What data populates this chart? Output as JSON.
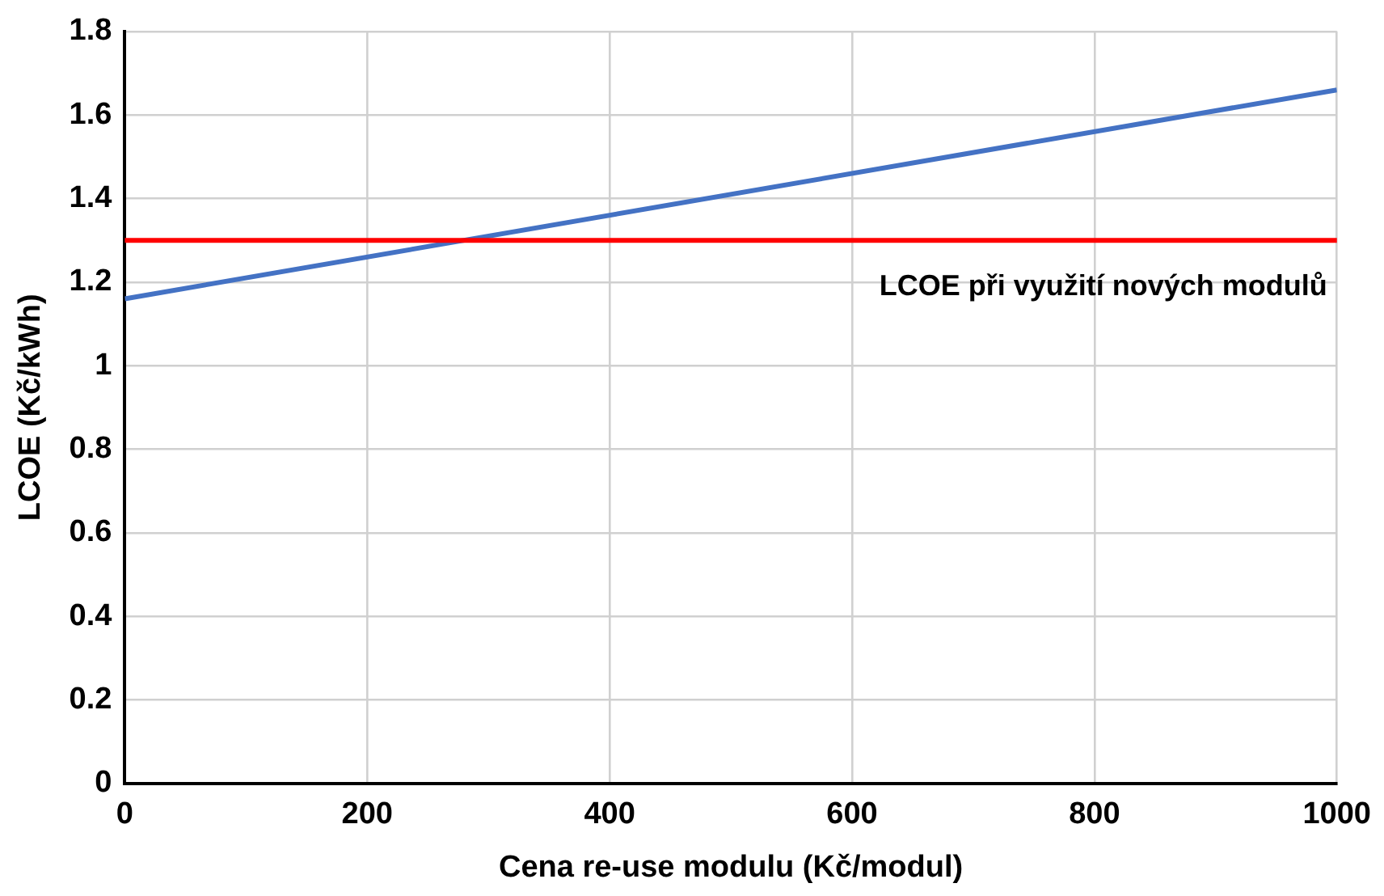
{
  "chart_data": {
    "type": "line",
    "xlabel": "Cena re-use modulu (Kč/modul)",
    "ylabel": "LCOE (Kč/kWh)",
    "x": [
      0,
      1000
    ],
    "series": [
      {
        "color": "#4472c4",
        "values": [
          1.16,
          1.66
        ]
      }
    ],
    "xlim": [
      0,
      1000
    ],
    "xticks": [
      0,
      200,
      400,
      600,
      800,
      1000
    ],
    "ylim": [
      0,
      1.8
    ],
    "yticks": [
      0,
      0.2,
      0.4,
      0.6,
      0.8,
      1,
      1.2,
      1.4,
      1.6,
      1.8
    ],
    "ref_lines": [
      {
        "axis": "y",
        "value": 1.3,
        "label": "LCOE při využití nových modulů",
        "color": "#ff0000"
      }
    ],
    "grid": true,
    "legend": false,
    "marker": "none",
    "line_style": "solid"
  }
}
